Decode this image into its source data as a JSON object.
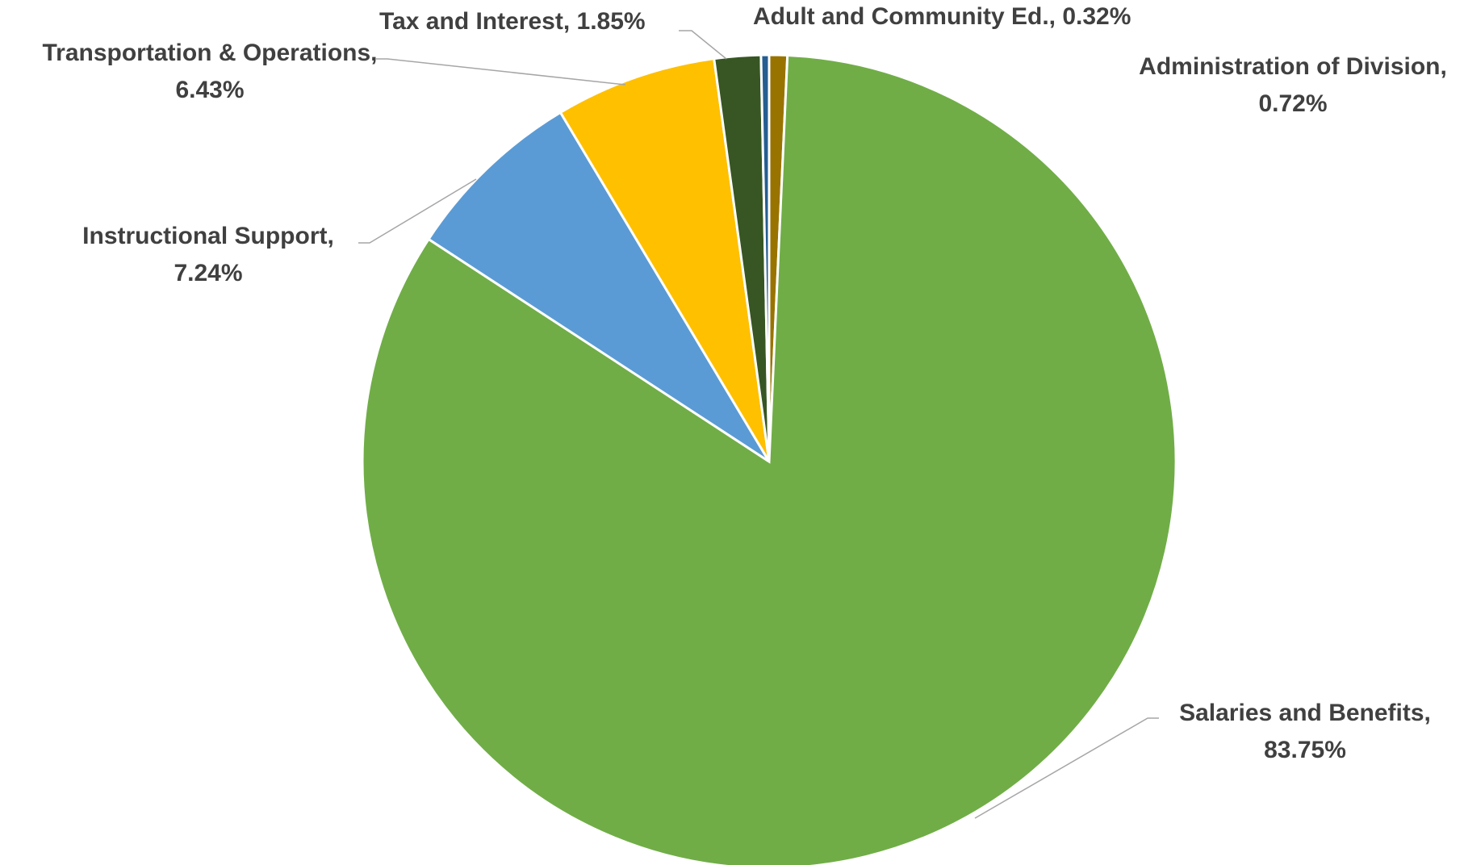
{
  "chart_data": {
    "type": "pie",
    "start_angle": "12 o'clock",
    "direction": "clockwise",
    "legend": "none",
    "slices": [
      {
        "label": "Administration of Division,",
        "percent_text": "0.72%",
        "value": 0.72,
        "color": "#997300"
      },
      {
        "label": "Salaries and Benefits,",
        "percent_text": "83.75%",
        "value": 83.75,
        "color": "#70ad47"
      },
      {
        "label": "Instructional Support,",
        "percent_text": "7.24%",
        "value": 7.24,
        "color": "#5b9bd5"
      },
      {
        "label": "Transportation & Operations,",
        "percent_text": "6.43%",
        "value": 6.43,
        "color": "#ffc000"
      },
      {
        "label": "Tax and Interest,",
        "percent_text": "1.85%",
        "value": 1.85,
        "color": "#375623"
      },
      {
        "label": "Adult and Community Ed.,",
        "percent_text": "0.32%",
        "value": 0.32,
        "color": "#255e91"
      }
    ]
  }
}
